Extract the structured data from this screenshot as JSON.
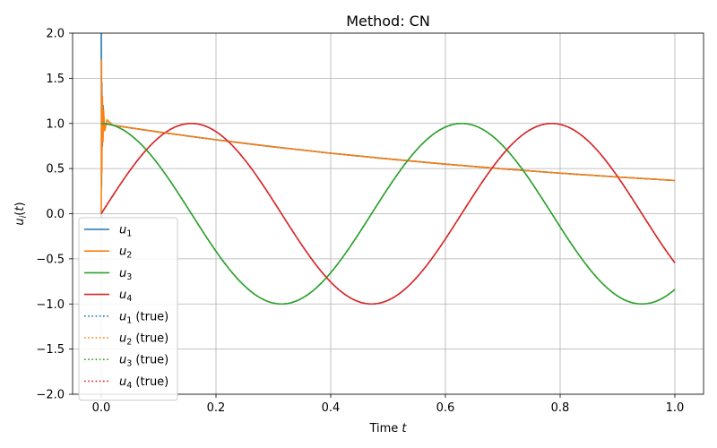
{
  "chart_data": {
    "type": "line",
    "title": "Method: CN",
    "xlabel": "Time t",
    "ylabel": "u_i(t)",
    "xlim": [
      -0.05,
      1.05
    ],
    "ylim": [
      -2.0,
      2.0
    ],
    "xticks": [
      0.0,
      0.2,
      0.4,
      0.6,
      0.8,
      1.0
    ],
    "xtick_labels": [
      "0.0",
      "0.2",
      "0.4",
      "0.6",
      "0.8",
      "1.0"
    ],
    "yticks": [
      -2.0,
      -1.5,
      -1.0,
      -0.5,
      0.0,
      0.5,
      1.0,
      1.5,
      2.0
    ],
    "ytick_labels": [
      "−2.0",
      "−1.5",
      "−1.0",
      "−0.5",
      "0.0",
      "0.5",
      "1.0",
      "1.5",
      "2.0"
    ],
    "grid": true,
    "legend_position": "lower-left",
    "series": [
      {
        "name": "u1",
        "color": "#1f77b4",
        "style": "solid",
        "x": [
          0.0,
          0.0005,
          0.001,
          0.002,
          0.003,
          0.005,
          0.01,
          0.02,
          0.1,
          0.2,
          0.3,
          0.4,
          0.5,
          0.6,
          0.7,
          0.8,
          0.9,
          1.0
        ],
        "y": [
          2.0,
          0.3,
          1.45,
          0.75,
          1.2,
          0.95,
          1.0,
          0.98,
          0.905,
          0.819,
          0.741,
          0.67,
          0.607,
          0.549,
          0.497,
          0.449,
          0.407,
          0.368
        ]
      },
      {
        "name": "u2",
        "color": "#ff7f0e",
        "style": "solid",
        "x": [
          0.0,
          0.0005,
          0.001,
          0.002,
          0.003,
          0.004,
          0.006,
          0.01,
          0.02,
          0.1,
          0.2,
          0.3,
          0.4,
          0.5,
          0.6,
          0.7,
          0.8,
          0.9,
          1.0
        ],
        "y": [
          0.0,
          1.7,
          0.45,
          1.3,
          0.8,
          1.15,
          0.92,
          1.04,
          0.98,
          0.905,
          0.819,
          0.741,
          0.67,
          0.607,
          0.549,
          0.497,
          0.449,
          0.407,
          0.368
        ]
      },
      {
        "name": "u3",
        "color": "#2ca02c",
        "style": "solid",
        "func": "cos10t",
        "x_range": [
          0.0,
          1.0
        ]
      },
      {
        "name": "u4",
        "color": "#d62728",
        "style": "solid",
        "func": "sin10t",
        "x_range": [
          0.0,
          1.0
        ]
      },
      {
        "name": "u1 (true)",
        "color": "#1f77b4",
        "style": "dotted",
        "func": "exp-t",
        "x_range": [
          0.0,
          1.0
        ]
      },
      {
        "name": "u2 (true)",
        "color": "#ff7f0e",
        "style": "dotted",
        "func": "exp-t",
        "x_range": [
          0.0,
          1.0
        ]
      },
      {
        "name": "u3 (true)",
        "color": "#2ca02c",
        "style": "dotted",
        "func": "cos10t",
        "x_range": [
          0.0,
          1.0
        ]
      },
      {
        "name": "u4 (true)",
        "color": "#d62728",
        "style": "dotted",
        "func": "sin10t",
        "x_range": [
          0.0,
          1.0
        ]
      }
    ]
  }
}
